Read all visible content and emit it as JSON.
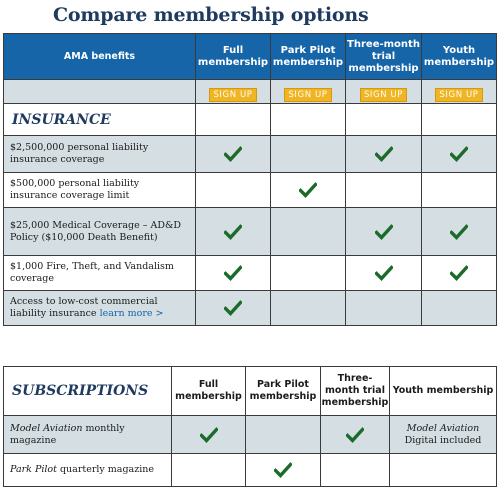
{
  "title": "Compare membership options",
  "membership_table": {
    "benefits_header": "AMA benefits",
    "columns": [
      "Full membership",
      "Park Pilot membership",
      "Three-month trial membership",
      "Youth membership"
    ],
    "signup_label": "SIGN UP",
    "section_label": "INSURANCE",
    "rows": [
      {
        "label": "$2,500,000 personal liability insurance coverage",
        "checks": [
          true,
          false,
          true,
          true
        ]
      },
      {
        "label": "$500,000 personal liability insurance coverage limit",
        "checks": [
          false,
          true,
          false,
          false
        ]
      },
      {
        "label": "$25,000 Medical Coverage – AD&D Policy ($10,000 Death Benefit)",
        "checks": [
          true,
          false,
          true,
          true
        ]
      },
      {
        "label": "$1,000 Fire, Theft, and Vandalism coverage",
        "checks": [
          true,
          false,
          true,
          true
        ]
      },
      {
        "label": "Access to low-cost commercial liability insurance",
        "link": "learn more >",
        "checks": [
          true,
          false,
          false,
          false
        ]
      }
    ]
  },
  "subscriptions_table": {
    "section_label": "SUBSCRIPTIONS",
    "columns": [
      "Full membership",
      "Park Pilot membership",
      "Three-month trial membership",
      "Youth membership"
    ],
    "rows": [
      {
        "label_italic": "Model Aviation",
        "label_rest": " monthly magazine",
        "checks": [
          true,
          false,
          true,
          false
        ],
        "youth_note_italic": "Model Aviation",
        "youth_note_rest": " Digital included"
      },
      {
        "label_italic": "Park Pilot",
        "label_rest": " quarterly magazine",
        "checks": [
          false,
          true,
          false,
          false
        ]
      }
    ]
  },
  "colors": {
    "header_blue": "#1565a8",
    "title_navy": "#1f3a5f",
    "signup_gold": "#efb524",
    "row_shade": "#d5dfe3",
    "check_green": "#1c6b2a"
  },
  "icons": {
    "check": "checkmark-icon"
  }
}
